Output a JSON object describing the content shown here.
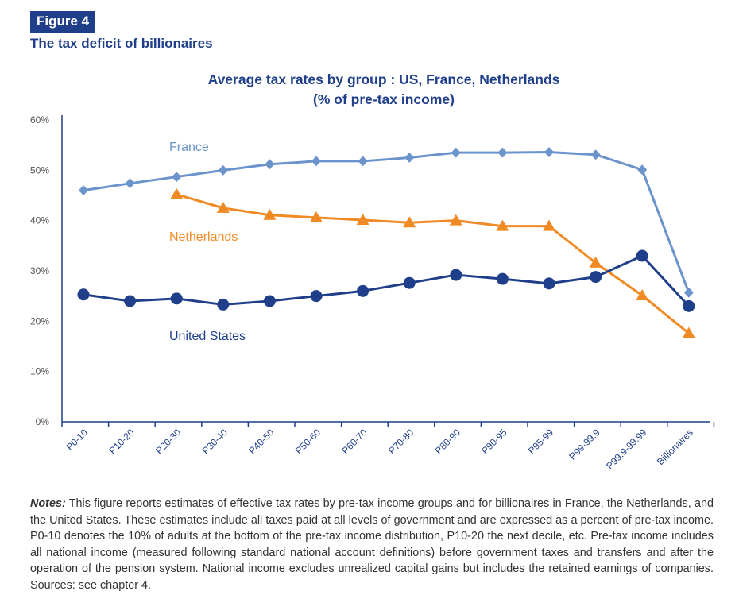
{
  "figure": {
    "label": "Figure 4",
    "title": "The tax deficit of billionaires"
  },
  "colors": {
    "brand": "#1f3f8a",
    "france": "#6b93cc",
    "netherlands": "#f08a24",
    "us": "#1f3f8a"
  },
  "chart_data": {
    "type": "line",
    "title": "Average tax rates by group : US, France, Netherlands",
    "subtitle": "(% of pre-tax income)",
    "xlabel": "",
    "ylabel": "",
    "ylim": [
      0,
      60
    ],
    "yticks": [
      "0%",
      "10%",
      "20%",
      "30%",
      "40%",
      "50%",
      "60%"
    ],
    "grid": false,
    "categories": [
      "P0-10",
      "P10-20",
      "P20-30",
      "P30-40",
      "P40-50",
      "P50-60",
      "P60-70",
      "P70-80",
      "P80-90",
      "P90-95",
      "P95-99",
      "P99-99.9",
      "P99.9-99.99",
      "Billionaires"
    ],
    "series": [
      {
        "name": "France",
        "label": "France",
        "marker": "diamond",
        "values": [
          46,
          47.4,
          48.7,
          50,
          51.2,
          51.8,
          51.8,
          52.5,
          53.5,
          53.5,
          53.6,
          53.1,
          50.1,
          25.7
        ]
      },
      {
        "name": "Netherlands",
        "label": "Netherlands",
        "marker": "triangle",
        "values": [
          null,
          null,
          45.2,
          42.5,
          41.1,
          40.6,
          40.1,
          39.6,
          40,
          38.9,
          38.9,
          31.6,
          25.1,
          17.6
        ]
      },
      {
        "name": "United States",
        "label": "United States",
        "marker": "circle",
        "values": [
          25.3,
          24,
          24.5,
          23.3,
          24,
          25,
          26,
          27.6,
          29.2,
          28.4,
          27.5,
          28.8,
          33,
          23
        ]
      }
    ]
  },
  "notes": {
    "label": "Notes:",
    "text": " This figure reports  estimates of effective tax rates by pre-tax income groups and for billionaires in France, the Netherlands, and the United States. These estimates include all taxes paid at all levels of government and are expressed as a percent of pre-tax income. P0-10 denotes the 10% of adults at the bottom of the pre-tax income distribution, P10-20 the next decile, etc. Pre-tax income includes all national income (measured following standard national account definitions) before government taxes and transfers and after the operation of the pension system. National income excludes unrealized capital gains but includes the retained earnings of companies. Sources: see chapter 4."
  }
}
